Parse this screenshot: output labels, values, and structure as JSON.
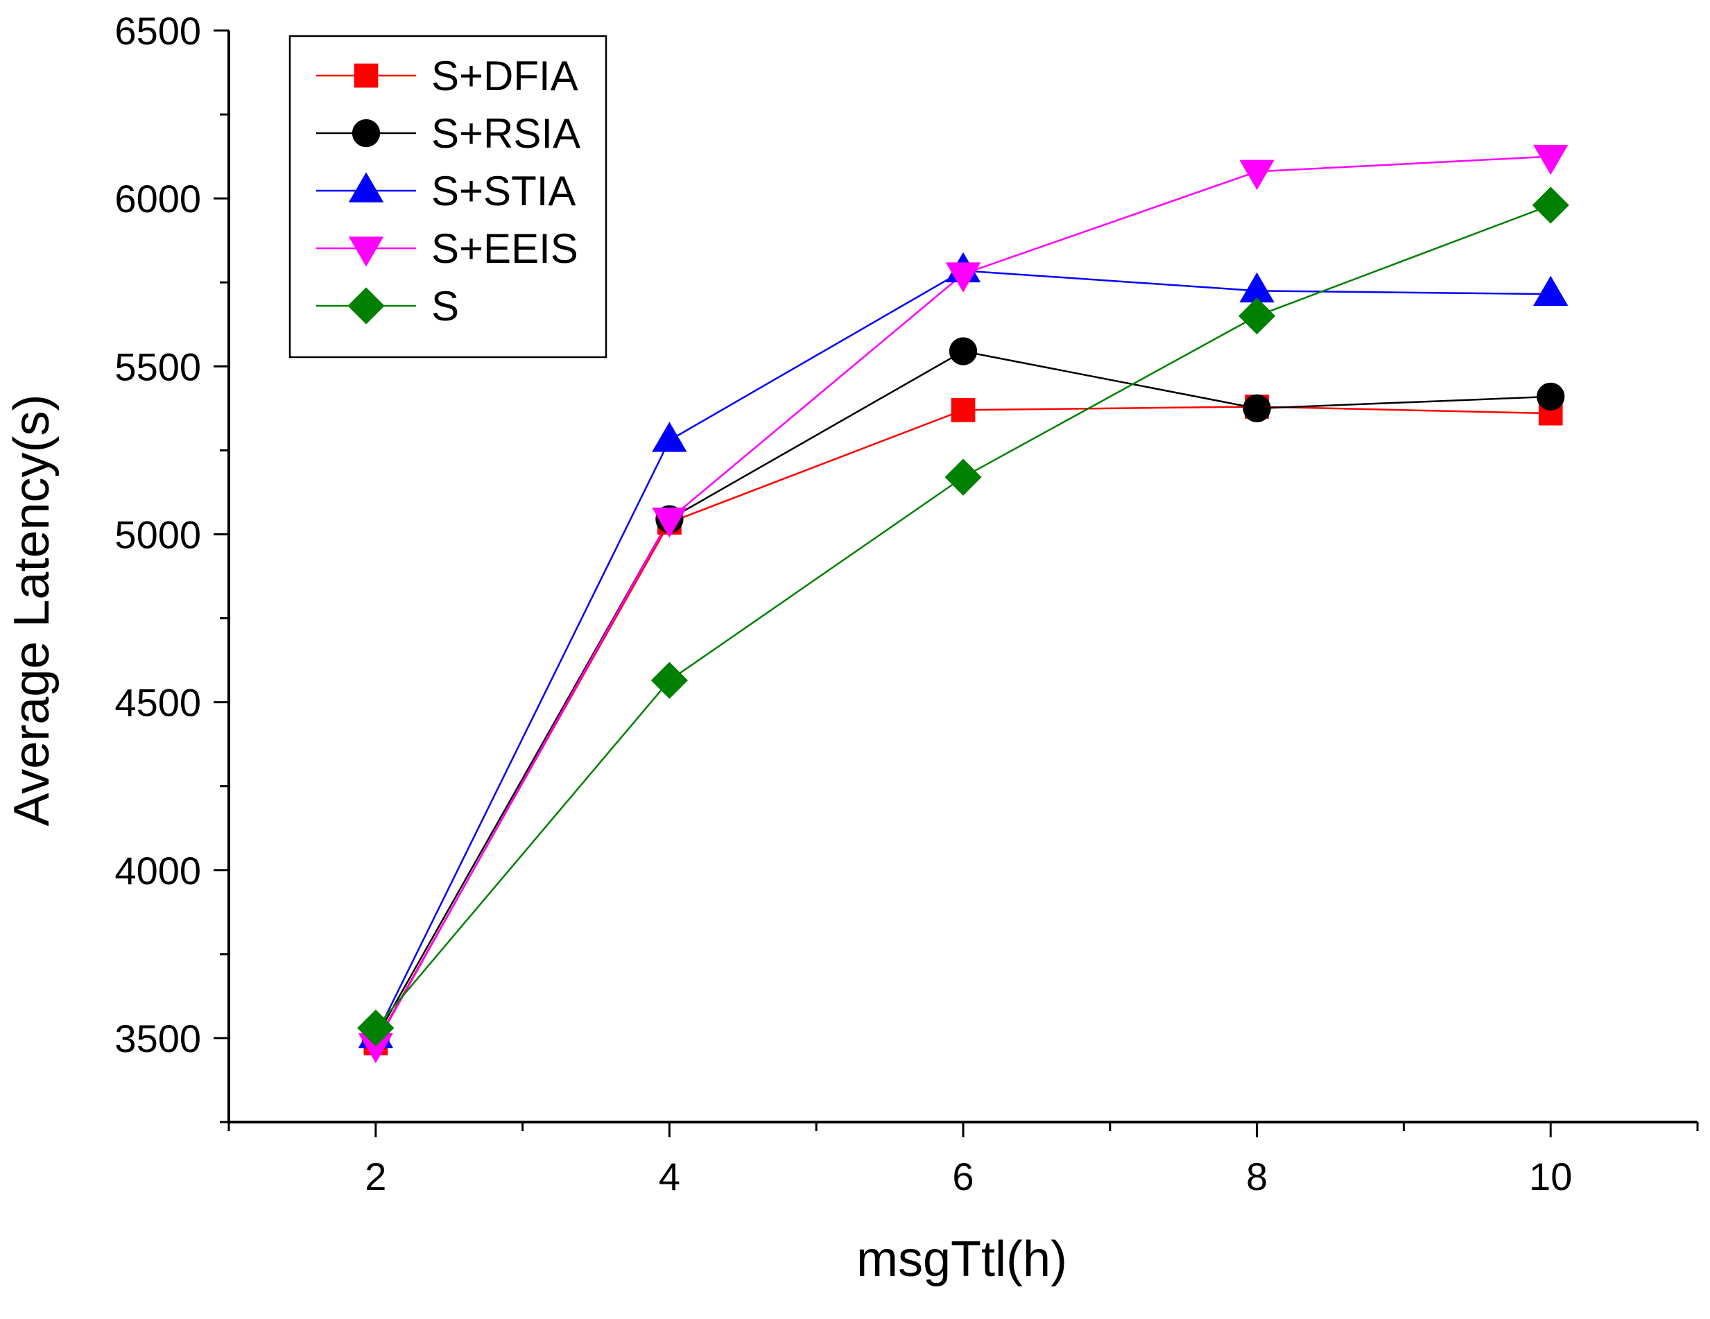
{
  "chart_data": {
    "type": "line",
    "title": "",
    "xlabel": "msgTtl(h)",
    "ylabel": "Average Latency(s)",
    "xlim": [
      1,
      11
    ],
    "ylim": [
      3250,
      6500
    ],
    "xticks": [
      2,
      4,
      6,
      8,
      10
    ],
    "xtick_labels": [
      "2",
      "4",
      "6",
      "8",
      "10"
    ],
    "yticks": [
      3500,
      4000,
      4500,
      5000,
      5500,
      6000,
      6500
    ],
    "ytick_labels": [
      "3500",
      "4000",
      "4500",
      "5000",
      "5500",
      "6000",
      "6500"
    ],
    "x": [
      2,
      4,
      6,
      8,
      10
    ],
    "legend_position": "top-left",
    "series": [
      {
        "name": "S+DFIA",
        "color": "#ff0000",
        "marker": "square",
        "values": [
          3485,
          5035,
          5370,
          5380,
          5360
        ]
      },
      {
        "name": "S+RSIA",
        "color": "#000000",
        "marker": "circle",
        "values": [
          3500,
          5045,
          5545,
          5375,
          5410
        ]
      },
      {
        "name": "S+STIA",
        "color": "#0000ff",
        "marker": "triangle-up",
        "values": [
          3505,
          5280,
          5785,
          5725,
          5715
        ]
      },
      {
        "name": "S+EEIS",
        "color": "#ff00ff",
        "marker": "triangle-down",
        "values": [
          3480,
          5045,
          5775,
          6080,
          6125
        ]
      },
      {
        "name": "S",
        "color": "#008000",
        "marker": "diamond",
        "values": [
          3530,
          4565,
          5170,
          5650,
          5980
        ]
      }
    ]
  }
}
